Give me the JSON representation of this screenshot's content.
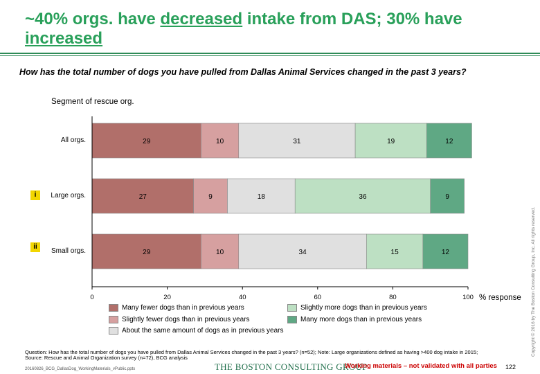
{
  "page": {
    "title_part1": "~40% orgs. have ",
    "title_u1": "decreased",
    "title_part2": " intake from DAS; 30% have ",
    "title_u2": "increased",
    "question": "How has the total number of dogs you have pulled from Dallas Animal Services changed in the past 3 years?",
    "footnote_line1": "Question: How has the total number of dogs you have pulled from Dallas Animal Services changed in the past 3 years? (n=52); Note: Large organizations defined as having >400 dog intake in 2015;",
    "footnote_line2": "Source: Rescue and Animal Organization survey (n=72), BCG analysis",
    "filename": "20160826_BCG_DallasDog_WorkingMaterials_vPublic.pptx",
    "logo_text": "THE BOSTON CONSULTING GROUP",
    "working_note": "Working materials – not validated with all parties",
    "page_number": "122",
    "copyright": "Copyright © 2016 by The Boston Consulting Group, Inc. All rights reserved."
  },
  "chart_data": {
    "type": "bar",
    "orientation": "horizontal-stacked",
    "segment_label": "Segment of rescue org.",
    "categories": [
      "All orgs.",
      "Large orgs.",
      "Small orgs."
    ],
    "category_markers": [
      "",
      "i",
      "ii"
    ],
    "series": [
      {
        "name": "Many fewer dogs than in previous years",
        "values": [
          29,
          27,
          29
        ],
        "color": "#b16f6a"
      },
      {
        "name": "Slightly fewer dogs than in previous years",
        "values": [
          10,
          9,
          10
        ],
        "color": "#d6a0a0"
      },
      {
        "name": "About the same amount of dogs  as in previous years",
        "values": [
          31,
          18,
          34
        ],
        "color": "#e0e0e0"
      },
      {
        "name": "Slightly more dogs than in previous years",
        "values": [
          19,
          36,
          15
        ],
        "color": "#bde0c3"
      },
      {
        "name": "Many more dogs than in previous years",
        "values": [
          12,
          9,
          12
        ],
        "color": "#5fa884"
      }
    ],
    "xlim": [
      0,
      100
    ],
    "xticks": [
      0,
      20,
      40,
      60,
      80,
      100
    ],
    "xlabel": "% response",
    "grid": false,
    "legend_position": "bottom"
  }
}
